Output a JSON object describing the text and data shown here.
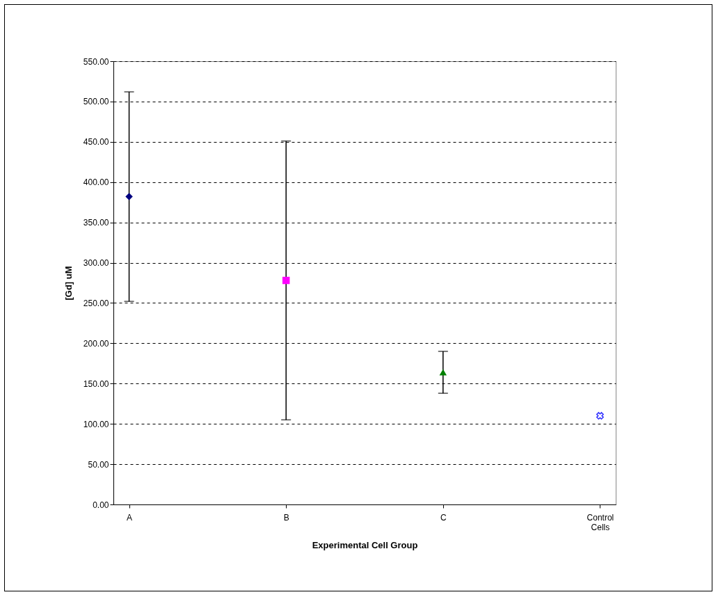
{
  "chart_data": {
    "type": "scatter",
    "xlabel": "Experimental Cell Group",
    "ylabel": "[Gd] uM",
    "categories": [
      "A",
      "B",
      "C",
      "Control Cells"
    ],
    "ylim": [
      0,
      550
    ],
    "yticks": [
      {
        "value": 0,
        "label": "0.00"
      },
      {
        "value": 50,
        "label": "50.00"
      },
      {
        "value": 100,
        "label": "100.00"
      },
      {
        "value": 150,
        "label": "150.00"
      },
      {
        "value": 200,
        "label": "200.00"
      },
      {
        "value": 250,
        "label": "250.00"
      },
      {
        "value": 300,
        "label": "300.00"
      },
      {
        "value": 350,
        "label": "350.00"
      },
      {
        "value": 400,
        "label": "400.00"
      },
      {
        "value": 450,
        "label": "450.00"
      },
      {
        "value": 500,
        "label": "500.00"
      },
      {
        "value": 550,
        "label": "550.00"
      }
    ],
    "grid": "y",
    "line_style": "dashed",
    "series": [
      {
        "color": "#000080",
        "marker": "diamond",
        "values": [
          382,
          null,
          null,
          null
        ],
        "errors": [
          130,
          null,
          null,
          null
        ]
      },
      {
        "color": "#ff00ff",
        "marker": "square",
        "values": [
          null,
          278,
          null,
          null
        ],
        "errors": [
          null,
          173,
          null,
          null
        ]
      },
      {
        "color": "#008000",
        "marker": "triangle",
        "values": [
          null,
          null,
          164,
          null
        ],
        "errors": [
          null,
          null,
          26,
          null
        ]
      },
      {
        "color": "#3333ff",
        "marker": "cross",
        "values": [
          null,
          null,
          null,
          110
        ]
      }
    ]
  }
}
